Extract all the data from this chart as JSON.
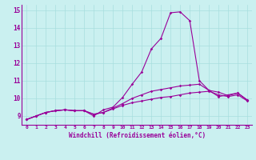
{
  "xlabel": "Windchill (Refroidissement éolien,°C)",
  "ylabel": "",
  "xlim": [
    -0.5,
    23.5
  ],
  "ylim": [
    8.5,
    15.3
  ],
  "yticks": [
    9,
    10,
    11,
    12,
    13,
    14,
    15
  ],
  "xticks": [
    0,
    1,
    2,
    3,
    4,
    5,
    6,
    7,
    8,
    9,
    10,
    11,
    12,
    13,
    14,
    15,
    16,
    17,
    18,
    19,
    20,
    21,
    22,
    23
  ],
  "bg_color": "#caf0f0",
  "line_color": "#990099",
  "grid_color": "#a8dede",
  "series": [
    [
      8.8,
      9.0,
      9.2,
      9.3,
      9.35,
      9.3,
      9.3,
      9.0,
      9.35,
      9.5,
      10.05,
      10.8,
      11.5,
      12.8,
      13.4,
      14.85,
      14.9,
      14.4,
      11.0,
      10.45,
      10.1,
      10.2,
      10.3,
      9.9
    ],
    [
      8.8,
      9.0,
      9.2,
      9.3,
      9.35,
      9.3,
      9.3,
      9.1,
      9.2,
      9.45,
      9.7,
      10.0,
      10.2,
      10.4,
      10.5,
      10.6,
      10.7,
      10.75,
      10.8,
      10.45,
      10.35,
      10.15,
      10.3,
      9.9
    ],
    [
      8.8,
      9.0,
      9.2,
      9.3,
      9.35,
      9.3,
      9.3,
      9.1,
      9.2,
      9.4,
      9.6,
      9.75,
      9.85,
      9.95,
      10.05,
      10.1,
      10.2,
      10.3,
      10.35,
      10.4,
      10.2,
      10.1,
      10.2,
      9.85
    ]
  ]
}
